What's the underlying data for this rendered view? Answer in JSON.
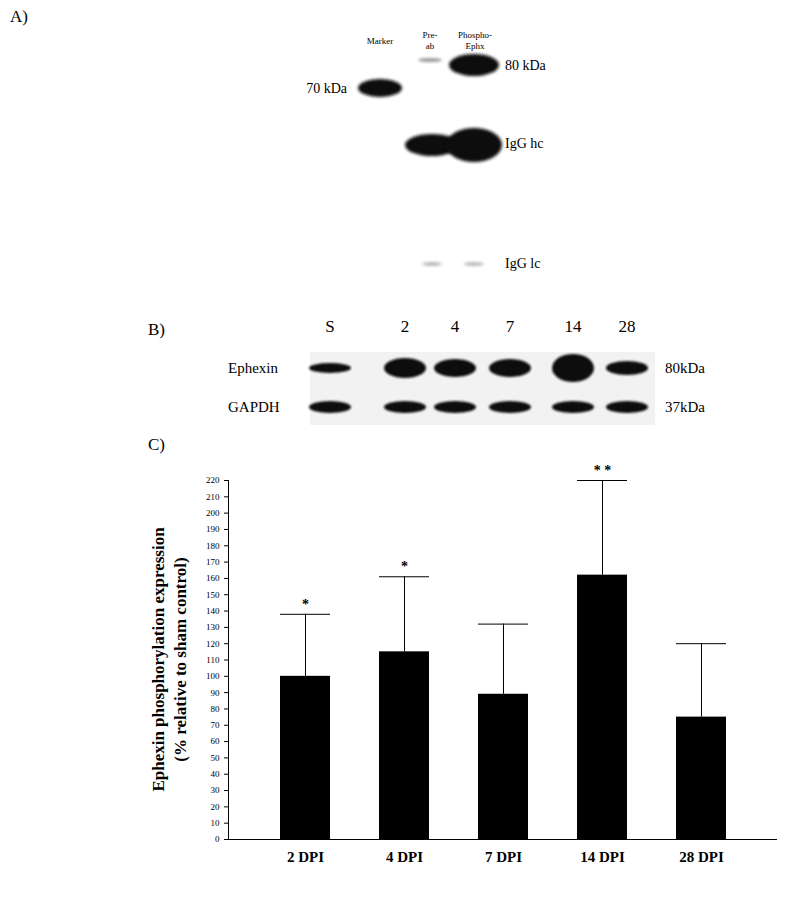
{
  "panel_a": {
    "label": "A)",
    "lanes": [
      "Marker",
      "Pre-ab",
      "Phospho-Ephx"
    ],
    "left_labels": [
      "70 kDa"
    ],
    "right_labels": [
      "80 kDa",
      "IgG hc",
      "IgG lc"
    ]
  },
  "panel_b": {
    "label": "B)",
    "lanes": [
      "S",
      "2",
      "4",
      "7",
      "14",
      "28"
    ],
    "rows": [
      {
        "name": "Ephexin",
        "size": "80kDa"
      },
      {
        "name": "GAPDH",
        "size": "37kDa"
      }
    ]
  },
  "chart_data": {
    "type": "bar",
    "title": "C)",
    "ylabel": [
      "Ephexin phosphorylation expression",
      "(% relative to sham control)"
    ],
    "categories": [
      "2 DPI",
      "4 DPI",
      "7 DPI",
      "14 DPI",
      "28 DPI"
    ],
    "values": [
      100,
      115,
      89,
      162,
      75
    ],
    "errors": [
      38,
      46,
      43,
      58,
      45
    ],
    "color": "#000000",
    "ylim": [
      0,
      220
    ],
    "yticks": [
      0,
      10,
      20,
      30,
      40,
      50,
      60,
      70,
      80,
      90,
      100,
      110,
      120,
      130,
      140,
      150,
      160,
      170,
      180,
      190,
      200,
      210,
      220
    ],
    "annotations": [
      {
        "category": "2 DPI",
        "text": "*"
      },
      {
        "category": "4 DPI",
        "text": "*"
      },
      {
        "category": "14 DPI",
        "text": "* *"
      }
    ]
  }
}
